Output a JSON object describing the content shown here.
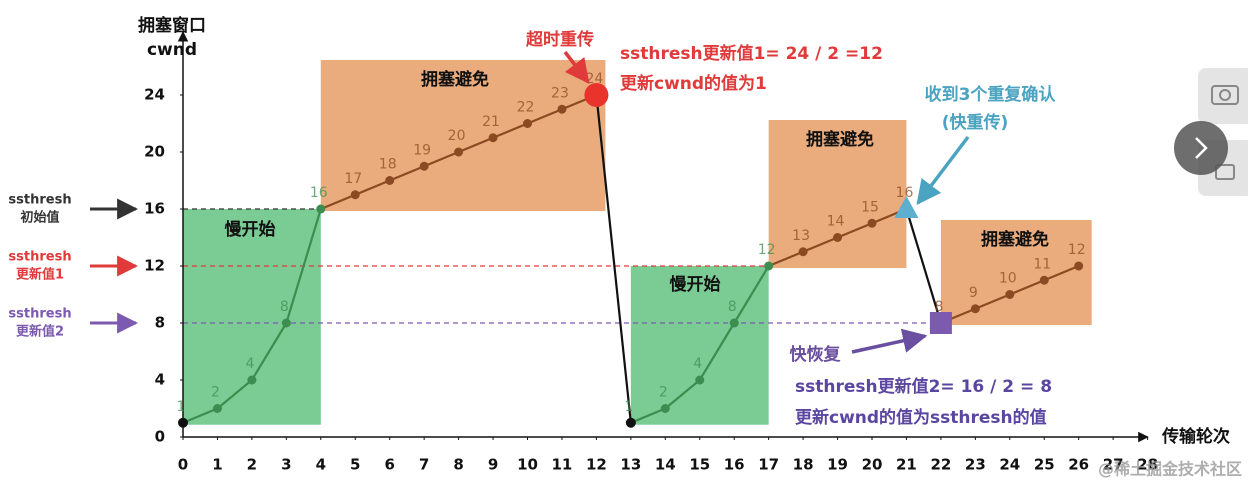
{
  "chart_data": {
    "type": "line",
    "y_label": [
      "拥塞窗口",
      "cwnd"
    ],
    "x_label": "传输轮次",
    "xlim": [
      0,
      28
    ],
    "ylim": [
      0,
      28
    ],
    "xticks": [
      0,
      1,
      2,
      3,
      4,
      5,
      6,
      7,
      8,
      9,
      10,
      11,
      12,
      13,
      14,
      15,
      16,
      17,
      18,
      19,
      20,
      21,
      22,
      23,
      24,
      25,
      26,
      27,
      28
    ],
    "yticks": [
      0,
      4,
      8,
      12,
      16,
      20,
      24
    ],
    "series": [
      {
        "x": [
          0,
          1,
          2,
          3,
          4,
          5,
          6,
          7,
          8,
          9,
          10,
          11,
          12,
          13,
          14,
          15,
          16,
          17,
          18,
          19,
          20,
          21,
          22,
          23,
          24,
          25,
          26
        ],
        "values": [
          1,
          2,
          4,
          8,
          16,
          17,
          18,
          19,
          20,
          21,
          22,
          23,
          24,
          1,
          2,
          4,
          8,
          12,
          13,
          14,
          15,
          16,
          8,
          9,
          10,
          11,
          12
        ],
        "color": "#111111"
      }
    ],
    "phases": [
      {
        "label": "慢开始",
        "x": [
          0,
          4
        ],
        "color": "#6dc58a",
        "line_color": "#3d8c50"
      },
      {
        "label": "拥塞避免",
        "x": [
          4,
          12
        ],
        "color": "#e9a36f",
        "line_color": "#8c4a22"
      },
      {
        "label": "慢开始",
        "x": [
          13,
          17
        ],
        "color": "#6dc58a",
        "line_color": "#3d8c50"
      },
      {
        "label": "拥塞避免",
        "x": [
          17,
          21
        ],
        "color": "#e9a36f",
        "line_color": "#8c4a22"
      },
      {
        "label": "拥塞避免",
        "x": [
          22,
          26
        ],
        "color": "#e9a36f",
        "line_color": "#8c4a22"
      }
    ],
    "thresholds": [
      {
        "value": 16,
        "label": [
          "ssthresh",
          "初始值"
        ],
        "color": "#333333",
        "x_end": 4
      },
      {
        "value": 12,
        "label": [
          "ssthresh",
          "更新值1"
        ],
        "color": "#e03a3a",
        "x_end": 17
      },
      {
        "value": 8,
        "label": [
          "ssthresh",
          "更新值2"
        ],
        "color": "#7b5ab0",
        "x_end": 22
      }
    ],
    "markers": [
      {
        "x": 0,
        "shape": "dot",
        "color": "#111111"
      },
      {
        "x": 13,
        "shape": "dot",
        "color": "#111111"
      },
      {
        "x": 12,
        "shape": "circle",
        "color": "#e8342c"
      },
      {
        "x": 21,
        "shape": "triangle",
        "color": "#5eaed0"
      },
      {
        "x": 22,
        "shape": "square",
        "color": "#7b5ab0"
      }
    ],
    "annotations": [
      {
        "lines": [
          "超时重传"
        ],
        "color": "#e03a3a"
      },
      {
        "lines": [
          "ssthresh更新值1= 24 / 2 =12",
          "更新cwnd的值为1"
        ],
        "color": "#e03a3a"
      },
      {
        "lines": [
          "收到3个重复确认",
          "(快重传)"
        ],
        "color": "#4aa3c0"
      },
      {
        "lines": [
          "快恢复"
        ],
        "color": "#6a4fa0"
      },
      {
        "lines": [
          "ssthresh更新值2= 16 / 2 = 8",
          "更新cwnd的值为ssthresh的值"
        ],
        "color": "#5a46a0"
      }
    ],
    "watermark": "@稀土掘金技术社区"
  }
}
